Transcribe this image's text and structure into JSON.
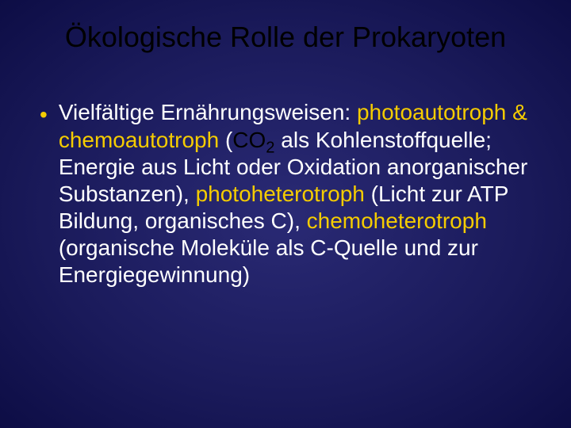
{
  "slide": {
    "background_color_center": "#2a2a75",
    "background_color_mid": "#1a1a5a",
    "background_color_edge": "#0d0d45",
    "title": {
      "text": "Ökologische Rolle der Prokaryoten",
      "color": "#000000",
      "font_size_pt": 36,
      "align": "center"
    },
    "bullet": {
      "marker": "•",
      "marker_color": "#f5cc00",
      "font_size_pt": 28,
      "colors": {
        "body_text": "#ffffff",
        "highlight": "#f5cc00",
        "bullet_marker": "#f5cc00",
        "co2": "#000000"
      },
      "segments": {
        "s1": "Vielfältige Ernährungsweisen: ",
        "s2": "photoautotroph & chemoautotroph",
        "s3": " (",
        "s4_co": "CO",
        "s4_sub": "2",
        "s5": " als Kohlenstoffquelle; Energie aus Licht oder Oxidation anorganischer Substanzen), ",
        "s6": "photoheterotroph",
        "s7": " (Licht zur ATP Bildung, organisches C), ",
        "s8": "chemoheterotroph",
        "s9": " (organische Moleküle als C-Quelle und zur Energiegewinnung)"
      }
    }
  }
}
